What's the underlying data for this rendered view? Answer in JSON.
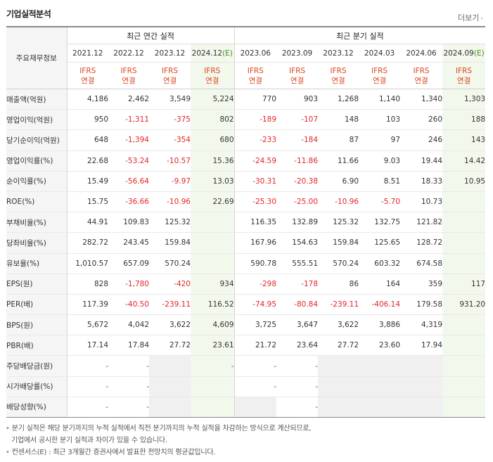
{
  "title": "기업실적분석",
  "more_label": "더보기",
  "group_headers": {
    "annual": "최근 연간 실적",
    "quarterly": "최근 분기 실적"
  },
  "corner_label": "주요재무정보",
  "ifrs_line1": "IFRS",
  "ifrs_line2": "연결",
  "estimate_marker": "(E)",
  "columns": [
    "2021.12",
    "2022.12",
    "2023.12",
    "2024.12",
    "2023.06",
    "2023.09",
    "2023.12",
    "2024.03",
    "2024.06",
    "2024.09"
  ],
  "estimate_columns": [
    3,
    9
  ],
  "rows": [
    {
      "label": "매출액(억원)",
      "values": [
        "4,186",
        "2,462",
        "3,549",
        "5,224",
        "770",
        "903",
        "1,268",
        "1,140",
        "1,340",
        "1,303"
      ]
    },
    {
      "label": "영업이익(억원)",
      "values": [
        "950",
        "-1,311",
        "-375",
        "802",
        "-189",
        "-107",
        "148",
        "103",
        "260",
        "188"
      ]
    },
    {
      "label": "당기순이익(억원)",
      "values": [
        "648",
        "-1,394",
        "-354",
        "680",
        "-233",
        "-184",
        "87",
        "97",
        "246",
        "143"
      ]
    },
    {
      "label": "영업이익률(%)",
      "values": [
        "22.68",
        "-53.24",
        "-10.57",
        "15.36",
        "-24.59",
        "-11.86",
        "11.66",
        "9.03",
        "19.44",
        "14.42"
      ]
    },
    {
      "label": "순이익률(%)",
      "values": [
        "15.49",
        "-56.64",
        "-9.97",
        "13.03",
        "-30.31",
        "-20.38",
        "6.90",
        "8.51",
        "18.33",
        "10.95"
      ]
    },
    {
      "label": "ROE(%)",
      "values": [
        "15.75",
        "-36.66",
        "-10.96",
        "22.69",
        "-25.30",
        "-25.00",
        "-10.96",
        "-5.70",
        "10.73",
        ""
      ]
    },
    {
      "label": "부채비율(%)",
      "values": [
        "44.91",
        "109.83",
        "125.32",
        "",
        "116.35",
        "132.89",
        "125.32",
        "132.75",
        "121.82",
        ""
      ]
    },
    {
      "label": "당좌비율(%)",
      "values": [
        "282.72",
        "243.45",
        "159.84",
        "",
        "167.96",
        "154.63",
        "159.84",
        "125.65",
        "128.72",
        ""
      ]
    },
    {
      "label": "유보율(%)",
      "values": [
        "1,010.57",
        "657.09",
        "570.24",
        "",
        "590.78",
        "555.51",
        "570.24",
        "603.32",
        "674.58",
        ""
      ]
    },
    {
      "label": "EPS(원)",
      "values": [
        "828",
        "-1,780",
        "-420",
        "934",
        "-298",
        "-178",
        "86",
        "164",
        "359",
        "117"
      ]
    },
    {
      "label": "PER(배)",
      "values": [
        "117.39",
        "-40.50",
        "-239.11",
        "116.52",
        "-74.95",
        "-80.84",
        "-239.11",
        "-406.14",
        "179.58",
        "931.20"
      ]
    },
    {
      "label": "BPS(원)",
      "values": [
        "5,672",
        "4,042",
        "3,622",
        "4,609",
        "3,725",
        "3,647",
        "3,622",
        "3,886",
        "4,319",
        ""
      ]
    },
    {
      "label": "PBR(배)",
      "values": [
        "17.14",
        "17.84",
        "27.72",
        "23.61",
        "21.72",
        "23.64",
        "27.72",
        "23.60",
        "17.94",
        ""
      ]
    },
    {
      "label": "주당배당금(원)",
      "values": [
        "-",
        "-",
        "",
        "-",
        "-",
        "-",
        "",
        "",
        "",
        ""
      ]
    },
    {
      "label": "시가배당률(%)",
      "values": [
        "-",
        "-",
        "",
        "",
        "-",
        "-",
        "",
        "",
        "",
        ""
      ]
    },
    {
      "label": "배당성향(%)",
      "values": [
        "-",
        "-",
        "",
        "",
        "",
        "-",
        "",
        "",
        "",
        ""
      ]
    }
  ],
  "notes": [
    "분기 실적은 해당 분기까지의 누적 실적에서 직전 분기까지의 누적 실적을 차감하는 방식으로 계산되므로,",
    "기업에서 공시한 분기 실적과 차이가 있을 수 있습니다.",
    "컨센서스(E) : 최근 3개월간 증권사에서 발표한 전망치의 평균값입니다."
  ],
  "note_bullet": "•",
  "colors": {
    "negative": "#e3262b",
    "ifrs": "#d9481e",
    "estimate_bg": "#f3f8ec",
    "estimate_text": "#3f8f1f"
  }
}
